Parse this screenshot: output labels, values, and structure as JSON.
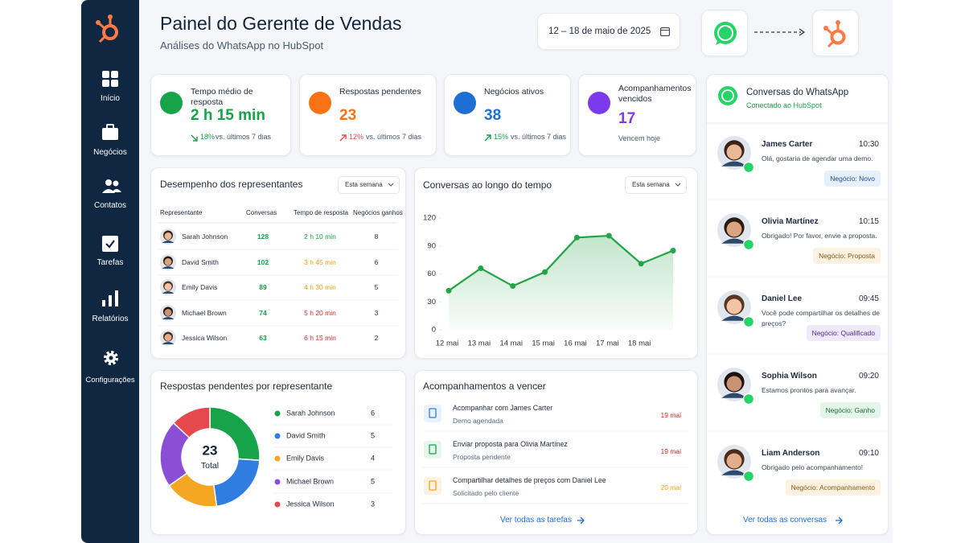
{
  "sidebar": {
    "nav": [
      "Início",
      "Negócios",
      "Contatos",
      "Tarefas",
      "Relatórios",
      "Configurações"
    ]
  },
  "header": {
    "title": "Painel do Gerente de Vendas",
    "subtitle": "Análises do WhatsApp no HubSpot",
    "date_range": "12 – 18 de maio de 2025"
  },
  "kpis": [
    {
      "label": "Tempo médio de resposta",
      "value": "2 h 15 min",
      "change": "18%",
      "change_note": "vs. últimos 7 dias"
    },
    {
      "label": "Respostas pendentes",
      "value": 23,
      "change": "12%",
      "change_note": "vs. últimos 7 dias"
    },
    {
      "label": "Negócios ativos",
      "value": 38,
      "change": "15%",
      "change_note": "vs. últimos 7 dias"
    },
    {
      "label": "Acompanhamentos vencidos",
      "value": 17,
      "note": "Vencem hoje"
    }
  ],
  "reps_table": {
    "title": "Desempenho dos representantes",
    "filter": "Esta semana",
    "columns": [
      "Representante",
      "Conversas",
      "Tempo de resposta",
      "Negócios ganhos"
    ],
    "rows": [
      [
        "Sarah Johnson",
        128,
        "2 h 10 min",
        8
      ],
      [
        "David Smith",
        102,
        "3 h 45 min",
        6
      ],
      [
        "Emily Davis",
        89,
        "4 h 30 min",
        5
      ],
      [
        "Michael Brown",
        74,
        "5 h 20 min",
        3
      ],
      [
        "Jessica Wilson",
        63,
        "6 h 15 min",
        2
      ]
    ],
    "time_colors": [
      "#16a34a",
      "#f59e0b",
      "#f59e0b",
      "#dc2626",
      "#dc2626"
    ]
  },
  "chart_data": [
    {
      "type": "line",
      "title": "Conversas ao longo do tempo",
      "filter": "Esta semana",
      "categories": [
        "12 mai",
        "13 mai",
        "14 mai",
        "15 mai",
        "16 mai",
        "17 mai",
        "18 mai",
        null
      ],
      "values": [
        42,
        66,
        47,
        62,
        99,
        101,
        71,
        85
      ],
      "color": "#22a447",
      "ylim": [
        0,
        120
      ],
      "yticks": [
        0,
        30,
        60,
        90,
        120
      ]
    },
    {
      "type": "pie",
      "donut": true,
      "title": "Respostas pendentes por representante",
      "categories": [
        "Sarah Johnson",
        "David Smith",
        "Emily Davis",
        "Michael Brown",
        "Jessica Wilson"
      ],
      "values": [
        6,
        5,
        4,
        5,
        3
      ],
      "colors": [
        "#16a34a",
        "#2f7de1",
        "#f5a623",
        "#8b4fd6",
        "#e5484d"
      ],
      "total": 23,
      "total_label": "Total"
    }
  ],
  "followups": {
    "title": "Acompanhamentos a vencer",
    "items": [
      {
        "title": "Acompanhar com James Carter",
        "subtitle": "Demo agendada",
        "due": "19 mai"
      },
      {
        "title": "Enviar proposta para Olivia Martínez",
        "subtitle": "Proposta pendente",
        "due": "19 mai"
      },
      {
        "title": "Compartilhar detalhes de preços com Daniel Lee",
        "subtitle": "Solicitado pelo cliente",
        "due": "20 mai"
      }
    ],
    "link": "Ver todas as tarefas"
  },
  "conversations": {
    "title": "Conversas do WhatsApp",
    "status": "Conectado ao HubSpot",
    "items": [
      {
        "name": "James Carter",
        "time": "10:30",
        "message": "Olá, gostaria de agendar uma demo.",
        "tag": "Negócio: Novo"
      },
      {
        "name": "Olivia Martínez",
        "time": "10:15",
        "message": "Obrigado! Por favor, envie a proposta.",
        "tag": "Negócio: Proposta"
      },
      {
        "name": "Daniel Lee",
        "time": "09:45",
        "message": "Você pode compartilhar os detalhes de preços?",
        "tag": "Negócio: Qualificado"
      },
      {
        "name": "Sophia Wilson",
        "time": "09:20",
        "message": "Estamos prontos para avançar.",
        "tag": "Negócio: Ganho"
      },
      {
        "name": "Liam Anderson",
        "time": "09:10",
        "message": "Obrigado pelo acompanhamento!",
        "tag": "Negócio: Acompanhamento"
      }
    ],
    "link": "Ver todas as conversas"
  }
}
